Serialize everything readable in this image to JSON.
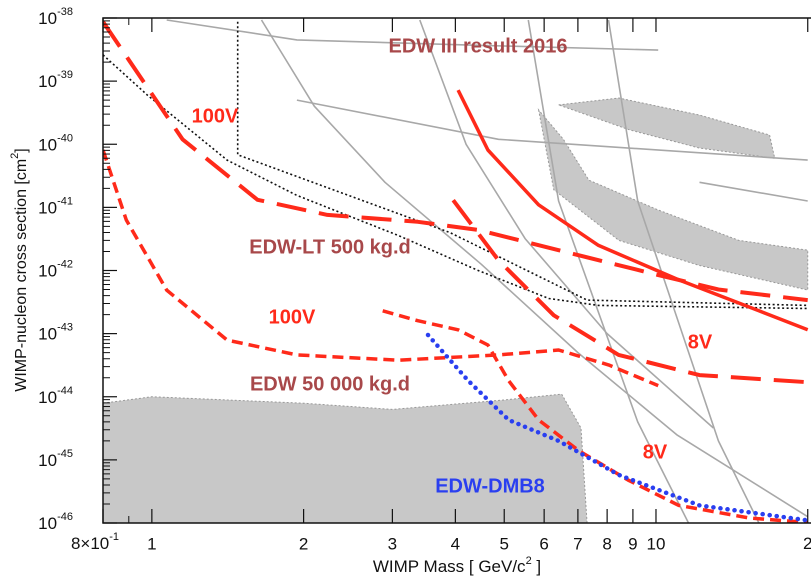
{
  "chart_data": {
    "type": "line",
    "log_x": true,
    "log_y": true,
    "minor_ticks": true,
    "xlim": [
      0.8,
      20.3
    ],
    "ylim": [
      1e-46,
      1e-38
    ],
    "xticks": [
      {
        "value": 0.8,
        "label": "8×10",
        "sup": "-1"
      },
      1,
      2,
      3,
      4,
      5,
      6,
      7,
      8,
      9,
      10,
      {
        "value": 20,
        "label": "2"
      }
    ],
    "yticks": [
      {
        "value": 1e-46,
        "label": "10",
        "sup": "-46"
      },
      {
        "value": 1e-45,
        "label": "10",
        "sup": "-45"
      },
      {
        "value": 1e-44,
        "label": "10",
        "sup": "-44"
      },
      {
        "value": 1e-43,
        "label": "10",
        "sup": "-43"
      },
      {
        "value": 1e-42,
        "label": "10",
        "sup": "-42"
      },
      {
        "value": 1e-41,
        "label": "10",
        "sup": "-41"
      },
      {
        "value": 1e-40,
        "label": "10",
        "sup": "-40"
      },
      {
        "value": 1e-39,
        "label": "10",
        "sup": "-39"
      },
      {
        "value": 1e-38,
        "label": "10",
        "sup": "-38"
      }
    ],
    "x_label": [
      "WIMP Mass [ GeV/c",
      "2",
      " ]"
    ],
    "y_label": [
      "WIMP-nucleon cross section [cm",
      "2",
      "]"
    ],
    "regions": [
      {
        "color": "#c8c8c8",
        "x": [
          0.8,
          0.8,
          1,
          2,
          3,
          5,
          6.5,
          7.1,
          7.3
        ],
        "values": [
          1e-46,
          7.9e-45,
          1e-44,
          7.9e-45,
          6.3e-45,
          8.9e-45,
          1.1e-44,
          3.2e-45,
          1e-46
        ]
      },
      {
        "color": "#c8c8c8",
        "x": [
          6.41,
          8.44,
          12.2,
          16.8,
          17.2,
          12.2,
          8.84
        ],
        "values": [
          4.2e-40,
          5.4e-40,
          2.9e-40,
          1.4e-40,
          6e-41,
          8.7e-41,
          1.7e-40
        ]
      },
      {
        "color": "#c8c8c8",
        "x": [
          5.85,
          6.27,
          8.44,
          12.2,
          20,
          20,
          14.6,
          10.1,
          7.36,
          6.55
        ],
        "values": [
          3.5e-40,
          1.9e-41,
          3e-42,
          1.2e-42,
          4.9e-43,
          2.1e-42,
          3e-42,
          9.1e-42,
          2.7e-41,
          1.2e-40
        ]
      }
    ],
    "series": [
      {
        "color": "#a8a8a8",
        "style": "thin",
        "x": [
          1.07,
          1.94,
          4.44,
          10.1
        ],
        "values": [
          9.3e-39,
          4.5e-39,
          3.7e-39,
          3.1e-39
        ]
      },
      {
        "color": "#a8a8a8",
        "style": "thin",
        "x": [
          1.65,
          2.1,
          2.9,
          4.5,
          7,
          11,
          20
        ],
        "values": [
          9.3e-39,
          4e-40,
          2.5e-41,
          1.26e-42,
          5e-44,
          2.5e-45,
          1.26e-46
        ]
      },
      {
        "color": "#a8a8a8",
        "style": "thin",
        "x": [
          1.94,
          4.87,
          20
        ],
        "values": [
          5e-40,
          1.2e-40,
          5.6e-41
        ]
      },
      {
        "color": "#a8a8a8",
        "style": "thin",
        "x": [
          5.58,
          6.41,
          9.2,
          11.6
        ],
        "values": [
          9.3e-39,
          1.26e-41,
          4e-45,
          1e-46
        ]
      },
      {
        "color": "#a8a8a8",
        "style": "thin",
        "x": [
          8.05,
          9.2,
          13.3,
          16
        ],
        "values": [
          9.3e-39,
          1.26e-41,
          2e-45,
          1e-46
        ]
      },
      {
        "color": "#a8a8a8",
        "style": "thin",
        "x": [
          12.2,
          20
        ],
        "values": [
          2.5e-41,
          1.26e-41
        ]
      },
      {
        "color": "#a8a8a8",
        "style": "thin",
        "x": [
          3.4,
          4.2,
          5.5,
          8,
          13
        ],
        "values": [
          9.3e-39,
          1e-40,
          3.2e-42,
          1e-43,
          3.2e-45
        ]
      },
      {
        "color": "#111111",
        "style": "fine-dot",
        "x": [
          0.8,
          0.98,
          1.41,
          1.94,
          3.08,
          4.44,
          6.13,
          7.69,
          20
        ],
        "values": [
          2.6e-39,
          6e-40,
          5.6e-41,
          1.55e-41,
          3.6e-42,
          1e-42,
          3.6e-43,
          2.8e-43,
          2.5e-43
        ]
      },
      {
        "color": "#111111",
        "style": "fine-dot",
        "x": [
          1.48,
          1.48,
          3.9,
          7.3,
          20
        ],
        "values": [
          8.7e-39,
          6.8e-41,
          4e-42,
          3.4e-43,
          2.8e-43
        ]
      },
      {
        "color": "#ff2a1a",
        "style": "solid",
        "x": [
          4.05,
          4.64,
          5.85,
          7.69,
          11.1,
          16,
          20
        ],
        "values": [
          7.2e-40,
          8.1e-41,
          1.1e-41,
          2.5e-42,
          7.1e-43,
          2.3e-43,
          1.15e-43
        ]
      },
      {
        "color": "#ff2a1a",
        "style": "long-dash",
        "x": [
          0.8,
          1.15,
          1.62,
          2.23,
          3.37,
          4.44,
          6.41,
          10.1,
          13.3,
          20
        ],
        "values": [
          8.7e-39,
          1.2e-40,
          1.32e-41,
          7.6e-42,
          5.9e-42,
          4.4e-42,
          2.1e-42,
          8.5e-43,
          5e-43,
          3.4e-43
        ]
      },
      {
        "color": "#ff2a1a",
        "style": "long-dash",
        "x": [
          3.96,
          4.87,
          6.27,
          8.43,
          12.2,
          20
        ],
        "values": [
          1.3e-41,
          1.45e-42,
          1.95e-43,
          4.6e-44,
          2.2e-44,
          1.7e-44
        ]
      },
      {
        "color": "#ff2a1a",
        "style": "dash",
        "x": [
          0.8,
          0.89,
          1.07,
          1.41,
          1.94,
          3.08,
          4.87,
          6.41,
          8.05,
          10.1
        ],
        "values": [
          8.1e-41,
          6.3e-42,
          4.9e-43,
          7.9e-44,
          4.6e-44,
          3.8e-44,
          4.6e-44,
          5.5e-44,
          3.2e-44,
          1.5e-44
        ]
      },
      {
        "color": "#ff2a1a",
        "style": "dash",
        "x": [
          2.87,
          3.37,
          4.05,
          4.64,
          5.1,
          5.85,
          7.03,
          8.8,
          11.1,
          15.3,
          20
        ],
        "values": [
          2.3e-43,
          1.6e-43,
          1.15e-43,
          6.6e-44,
          1.8e-44,
          4.3e-45,
          1.4e-45,
          4.8e-46,
          1.9e-46,
          1.2e-46,
          1.02e-46
        ]
      },
      {
        "color": "#2a3ff0",
        "style": "dot",
        "x": [
          3.53,
          4.24,
          5.1,
          6.41,
          8.43,
          12.2,
          20
        ],
        "values": [
          9.5e-44,
          1.8e-44,
          4.3e-45,
          2e-45,
          5.8e-46,
          1.9e-46,
          1.1e-46
        ]
      }
    ],
    "annotations": [
      {
        "text": "EDW III result 2016",
        "color": "#a8484a"
      },
      {
        "text": "100V",
        "color": "#ff2a1a"
      },
      {
        "text": "EDW-LT 500 kg.d",
        "color": "#a8484a"
      },
      {
        "text": "100V",
        "color": "#ff2a1a"
      },
      {
        "text": "8V",
        "color": "#ff2a1a"
      },
      {
        "text": "EDW 50 000 kg.d",
        "color": "#a8484a"
      },
      {
        "text": "8V",
        "color": "#ff2a1a"
      },
      {
        "text": "EDW-DMB8",
        "color": "#2a3ff0"
      }
    ]
  }
}
